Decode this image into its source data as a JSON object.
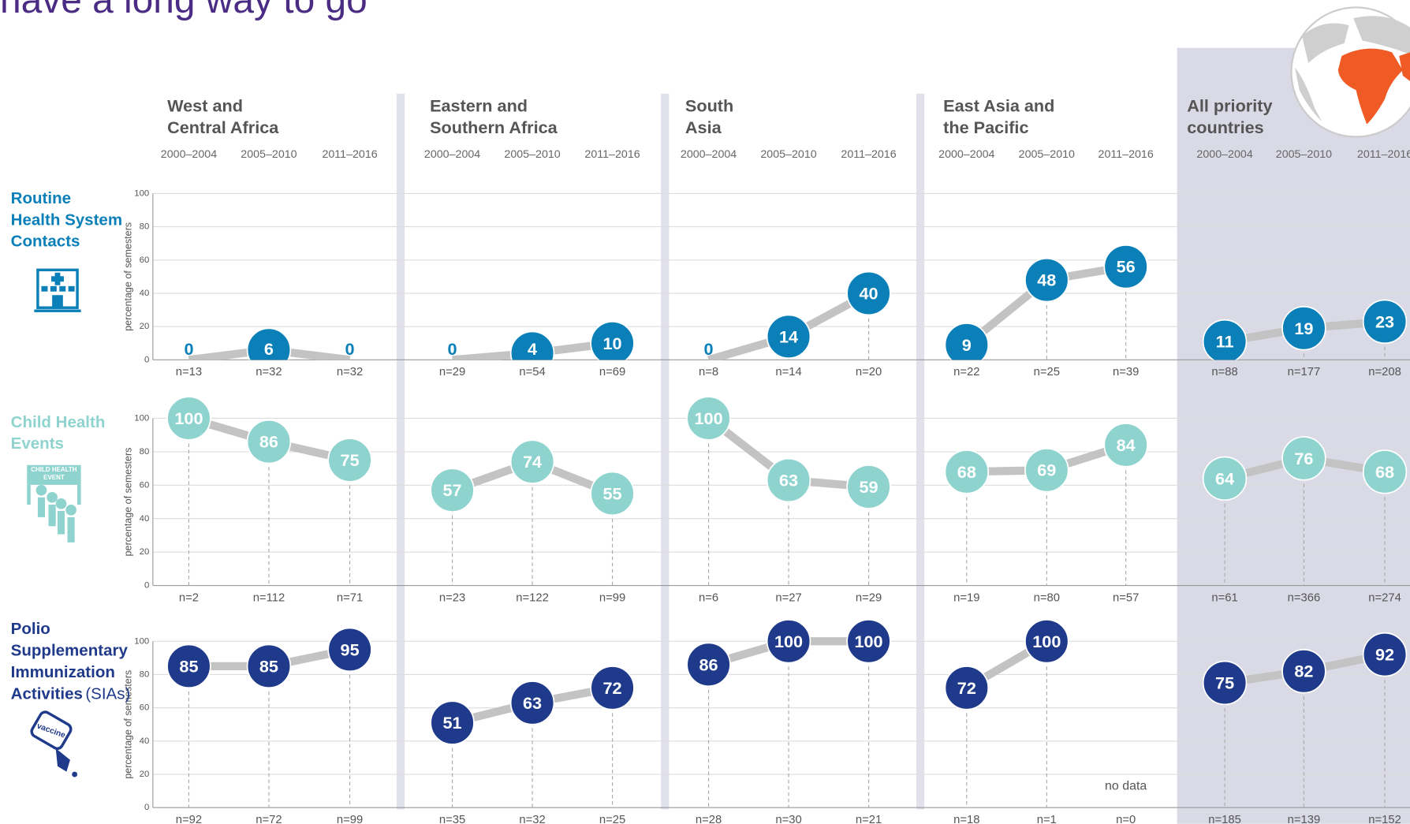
{
  "title": "have a long way to go",
  "chart_data": {
    "type": "line",
    "regions": [
      [
        "West and",
        "Central Africa"
      ],
      [
        "Eastern and",
        "Southern Africa"
      ],
      [
        "South",
        "Asia"
      ],
      [
        "East Asia and",
        "the Pacific"
      ],
      [
        "All priority",
        "countries"
      ]
    ],
    "categories": [
      "2000–2004",
      "2005–2010",
      "2011–2016"
    ],
    "ylim": [
      0,
      100
    ],
    "yticks": [
      0,
      20,
      40,
      60,
      80,
      100
    ],
    "y_label": "percentage of semesters",
    "grid": true,
    "no_data_label": "no data",
    "rows": [
      {
        "name": [
          "Routine",
          "Health System",
          "Contacts"
        ],
        "color": "#0a7fb8",
        "text_color": "#ffffff",
        "series": [
          {
            "values": [
              0,
              6,
              0
            ],
            "n": [
              "n=13",
              "n=32",
              "n=32"
            ]
          },
          {
            "values": [
              0,
              4,
              10
            ],
            "n": [
              "n=29",
              "n=54",
              "n=69"
            ]
          },
          {
            "values": [
              0,
              14,
              40
            ],
            "n": [
              "n=8",
              "n=14",
              "n=20"
            ]
          },
          {
            "values": [
              9,
              48,
              56
            ],
            "n": [
              "n=22",
              "n=25",
              "n=39"
            ]
          },
          {
            "values": [
              11,
              19,
              23
            ],
            "n": [
              "n=88",
              "n=177",
              "n=208"
            ]
          }
        ]
      },
      {
        "name": [
          "Child Health",
          "Events"
        ],
        "color": "#8fd3cf",
        "text_color": "#ffffff",
        "icon_label": [
          "CHILD HEALTH",
          "EVENT"
        ],
        "series": [
          {
            "values": [
              100,
              86,
              75
            ],
            "n": [
              "n=2",
              "n=112",
              "n=71"
            ]
          },
          {
            "values": [
              57,
              74,
              55
            ],
            "n": [
              "n=23",
              "n=122",
              "n=99"
            ]
          },
          {
            "values": [
              100,
              63,
              59
            ],
            "n": [
              "n=6",
              "n=27",
              "n=29"
            ]
          },
          {
            "values": [
              68,
              69,
              84
            ],
            "n": [
              "n=19",
              "n=80",
              "n=57"
            ]
          },
          {
            "values": [
              64,
              76,
              68
            ],
            "n": [
              "n=61",
              "n=366",
              "n=274"
            ]
          }
        ]
      },
      {
        "name": [
          "Polio",
          "Supplementary",
          "Immunization",
          "Activities"
        ],
        "name_suffix": "(SIAs)",
        "color": "#1f3a8a",
        "text_color": "#ffffff",
        "icon_label": [
          "vaccine"
        ],
        "series": [
          {
            "values": [
              85,
              85,
              95
            ],
            "n": [
              "n=92",
              "n=72",
              "n=99"
            ]
          },
          {
            "values": [
              51,
              63,
              72
            ],
            "n": [
              "n=35",
              "n=32",
              "n=25"
            ]
          },
          {
            "values": [
              86,
              100,
              100
            ],
            "n": [
              "n=28",
              "n=30",
              "n=21"
            ]
          },
          {
            "values": [
              72,
              100,
              null
            ],
            "n": [
              "n=18",
              "n=1",
              "n=0"
            ]
          },
          {
            "values": [
              75,
              82,
              92
            ],
            "n": [
              "n=185",
              "n=139",
              "n=152"
            ]
          }
        ]
      }
    ]
  }
}
